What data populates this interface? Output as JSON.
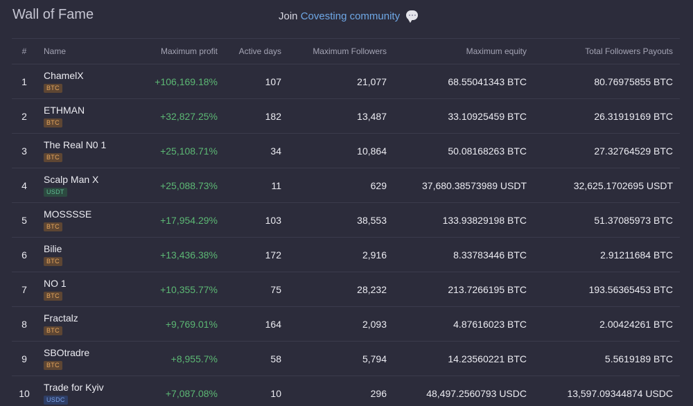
{
  "header": {
    "title": "Wall of Fame",
    "join_prefix": "Join",
    "join_link": "Covesting community",
    "chat_icon": "chat-bubble-icon"
  },
  "table": {
    "columns": {
      "index": "#",
      "name": "Name",
      "max_profit": "Maximum profit",
      "active_days": "Active days",
      "max_followers": "Maximum Followers",
      "max_equity": "Maximum equity",
      "total_payouts": "Total Followers Payouts"
    },
    "rows": [
      {
        "index": "1",
        "name": "ChamelX",
        "badge": "BTC",
        "badge_type": "btc",
        "max_profit": "+106,169.18%",
        "active_days": "107",
        "max_followers": "21,077",
        "max_equity": "68.55041343 BTC",
        "total_payouts": "80.76975855 BTC"
      },
      {
        "index": "2",
        "name": "ETHMAN",
        "badge": "BTC",
        "badge_type": "btc",
        "max_profit": "+32,827.25%",
        "active_days": "182",
        "max_followers": "13,487",
        "max_equity": "33.10925459 BTC",
        "total_payouts": "26.31919169 BTC"
      },
      {
        "index": "3",
        "name": "The Real N0 1",
        "badge": "BTC",
        "badge_type": "btc",
        "max_profit": "+25,108.71%",
        "active_days": "34",
        "max_followers": "10,864",
        "max_equity": "50.08168263 BTC",
        "total_payouts": "27.32764529 BTC"
      },
      {
        "index": "4",
        "name": "Scalp Man X",
        "badge": "USDT",
        "badge_type": "usdt",
        "max_profit": "+25,088.73%",
        "active_days": "11",
        "max_followers": "629",
        "max_equity": "37,680.38573989 USDT",
        "total_payouts": "32,625.1702695 USDT"
      },
      {
        "index": "5",
        "name": "MOSSSSE",
        "badge": "BTC",
        "badge_type": "btc",
        "max_profit": "+17,954.29%",
        "active_days": "103",
        "max_followers": "38,553",
        "max_equity": "133.93829198 BTC",
        "total_payouts": "51.37085973 BTC"
      },
      {
        "index": "6",
        "name": "Bilie",
        "badge": "BTC",
        "badge_type": "btc",
        "max_profit": "+13,436.38%",
        "active_days": "172",
        "max_followers": "2,916",
        "max_equity": "8.33783446 BTC",
        "total_payouts": "2.91211684 BTC"
      },
      {
        "index": "7",
        "name": "NO 1",
        "badge": "BTC",
        "badge_type": "btc",
        "max_profit": "+10,355.77%",
        "active_days": "75",
        "max_followers": "28,232",
        "max_equity": "213.7266195 BTC",
        "total_payouts": "193.56365453 BTC"
      },
      {
        "index": "8",
        "name": "Fractalz",
        "badge": "BTC",
        "badge_type": "btc",
        "max_profit": "+9,769.01%",
        "active_days": "164",
        "max_followers": "2,093",
        "max_equity": "4.87616023 BTC",
        "total_payouts": "2.00424261 BTC"
      },
      {
        "index": "9",
        "name": "SBOtradre",
        "badge": "BTC",
        "badge_type": "btc",
        "max_profit": "+8,955.7%",
        "active_days": "58",
        "max_followers": "5,794",
        "max_equity": "14.23560221 BTC",
        "total_payouts": "5.5619189 BTC"
      },
      {
        "index": "10",
        "name": "Trade for Kyiv",
        "badge": "USDC",
        "badge_type": "usdc",
        "max_profit": "+7,087.08%",
        "active_days": "10",
        "max_followers": "296",
        "max_equity": "48,497.2560793 USDC",
        "total_payouts": "13,597.09344874 USDC"
      }
    ]
  }
}
